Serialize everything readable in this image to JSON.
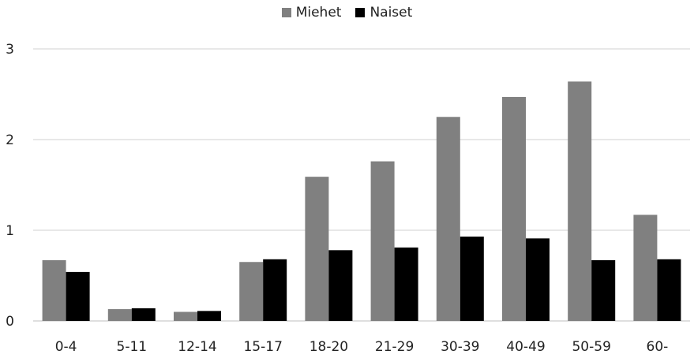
{
  "chart_data": {
    "type": "bar",
    "title": "",
    "xlabel": "",
    "ylabel": "",
    "categories": [
      "0-4",
      "5-11",
      "12-14",
      "15-17",
      "18-20",
      "21-29",
      "30-39",
      "40-49",
      "50-59",
      "60-"
    ],
    "series": [
      {
        "name": "Miehet",
        "color": "#808080",
        "values": [
          0.67,
          0.13,
          0.1,
          0.65,
          1.59,
          1.76,
          2.25,
          2.47,
          2.64,
          1.17
        ]
      },
      {
        "name": "Naiset",
        "color": "#000000",
        "values": [
          0.54,
          0.14,
          0.11,
          0.68,
          0.78,
          0.81,
          0.93,
          0.91,
          0.67,
          0.68
        ]
      }
    ],
    "ylim": [
      0,
      3
    ],
    "yticks": [
      "0",
      "1",
      "2",
      "3"
    ],
    "grid": true,
    "legend_position": "top-center"
  }
}
